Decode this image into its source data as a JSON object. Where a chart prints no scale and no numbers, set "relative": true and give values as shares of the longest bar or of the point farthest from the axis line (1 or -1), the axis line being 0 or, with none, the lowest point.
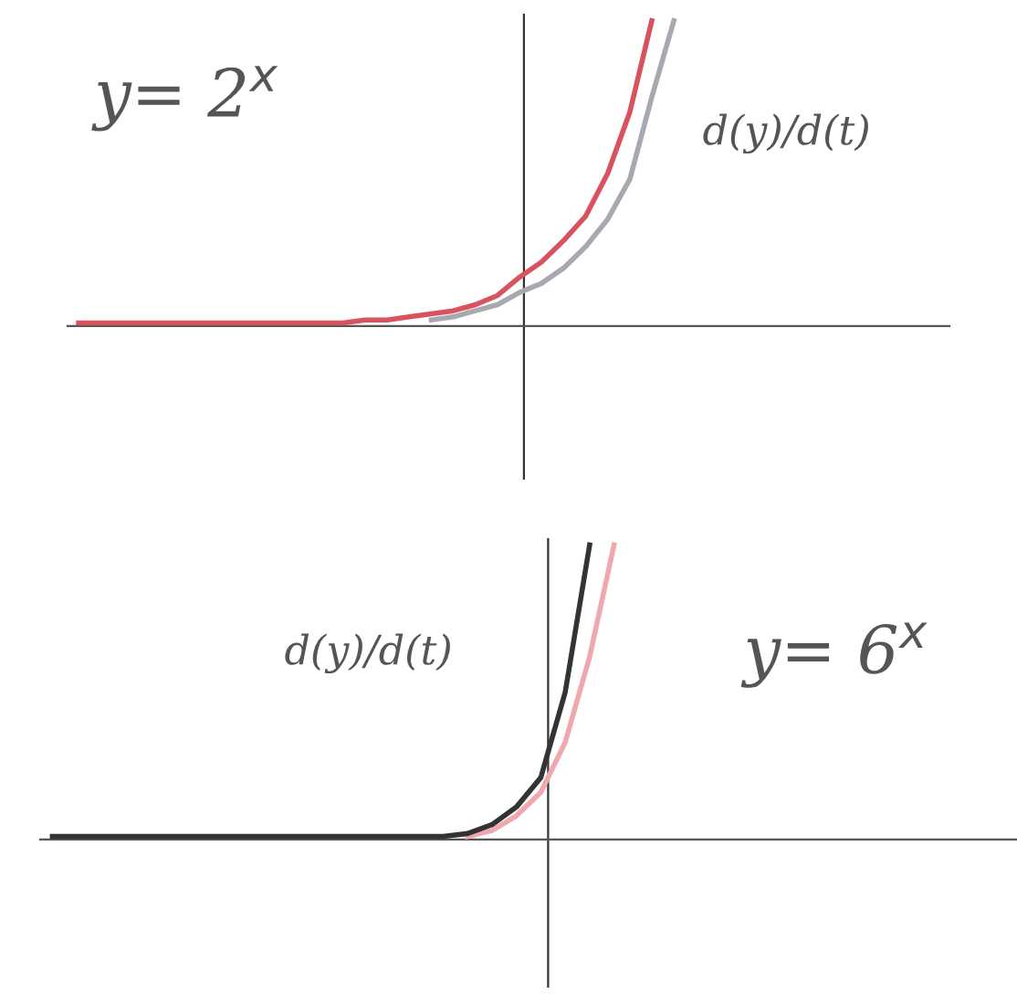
{
  "chart_data": [
    {
      "type": "line",
      "relative": true,
      "categories": [
        null,
        null,
        null,
        null,
        null,
        null,
        null,
        null,
        null,
        null,
        null,
        null,
        null,
        null,
        null,
        null,
        null,
        null,
        null,
        null,
        null,
        null,
        null,
        null,
        null,
        null,
        null,
        null,
        null,
        null,
        null,
        null,
        null,
        null,
        null,
        null,
        null,
        null,
        null,
        null
      ],
      "series": [
        {
          "color": "#d9535f",
          "values": [
            0.01,
            0.01,
            0.01,
            0.01,
            0.01,
            0.01,
            0.01,
            0.01,
            0.01,
            0.01,
            0.01,
            0.01,
            0.01,
            0.02,
            0.02,
            0.03,
            0.04,
            0.05,
            0.07,
            0.1,
            0.16,
            0.21,
            0.28,
            0.36,
            0.5,
            0.7,
            1.0,
            null,
            null,
            null,
            null,
            null,
            null,
            null,
            null,
            null,
            null,
            null,
            null,
            null
          ]
        },
        {
          "color": "#a8a8b0",
          "values": [
            null,
            null,
            null,
            null,
            null,
            null,
            null,
            null,
            null,
            null,
            null,
            null,
            null,
            null,
            null,
            null,
            0.02,
            0.03,
            0.05,
            0.07,
            0.11,
            0.14,
            0.19,
            0.26,
            0.35,
            0.48,
            0.75,
            1.0,
            null,
            null,
            null,
            null,
            null,
            null,
            null,
            null,
            null,
            null,
            null,
            null
          ]
        }
      ],
      "annotations": [
        "y= 2$^{x}$",
        "d(y)/d(t)"
      ]
    },
    {
      "type": "line",
      "relative": true,
      "categories": [
        null,
        null,
        null,
        null,
        null,
        null,
        null,
        null,
        null,
        null,
        null,
        null,
        null,
        null,
        null,
        null,
        null,
        null,
        null,
        null,
        null,
        null,
        null,
        null,
        null,
        null,
        null,
        null,
        null,
        null,
        null,
        null,
        null,
        null,
        null,
        null,
        null,
        null,
        null,
        null
      ],
      "series": [
        {
          "color": "#333333",
          "values": [
            0.01,
            0.01,
            0.01,
            0.01,
            0.01,
            0.01,
            0.01,
            0.01,
            0.01,
            0.01,
            0.01,
            0.01,
            0.01,
            0.01,
            0.01,
            0.01,
            0.01,
            0.02,
            0.05,
            0.11,
            0.21,
            0.5,
            1.0,
            null,
            null,
            null,
            null,
            null,
            null,
            null,
            null,
            null,
            null,
            null,
            null,
            null,
            null,
            null,
            null,
            null
          ]
        },
        {
          "color": "#f0a8ae",
          "values": [
            null,
            null,
            null,
            null,
            null,
            null,
            null,
            null,
            null,
            null,
            null,
            null,
            null,
            null,
            null,
            null,
            null,
            0.01,
            0.03,
            0.08,
            0.16,
            0.33,
            0.62,
            1.0,
            null,
            null,
            null,
            null,
            null,
            null,
            null,
            null,
            null,
            null,
            null,
            null,
            null,
            null,
            null,
            null
          ]
        }
      ],
      "annotations": [
        "d(y)/d(t)",
        "y= 6$^{x}$"
      ]
    }
  ]
}
